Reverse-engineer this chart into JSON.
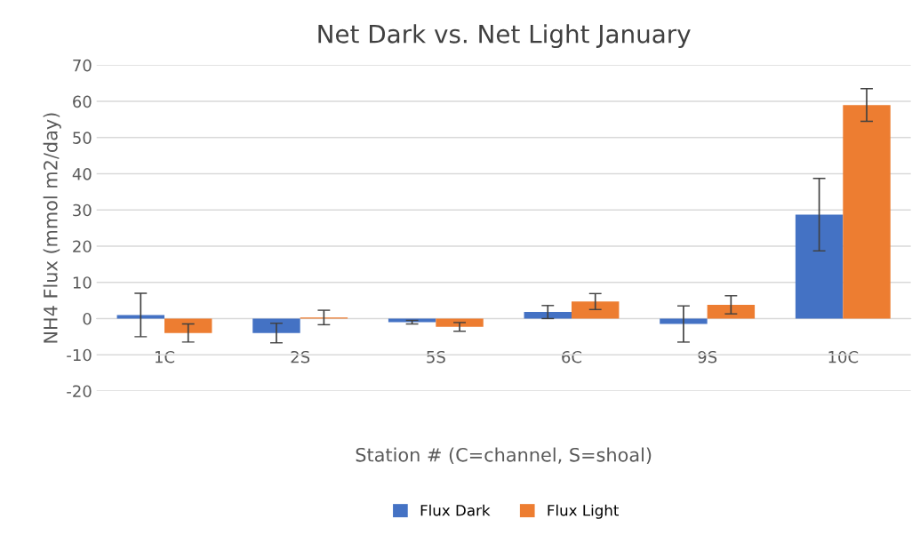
{
  "chart_data": {
    "type": "bar",
    "title": "Net Dark vs. Net Light January",
    "xlabel": "Station # (C=channel, S=shoal)",
    "ylabel": "NH4 Flux (mmol m2/day)",
    "categories": [
      "1C",
      "2S",
      "5S",
      "6C",
      "9S",
      "10C"
    ],
    "series": [
      {
        "name": "Flux Dark",
        "color": "#4472c4",
        "values": [
          1,
          -4,
          -1,
          1.8,
          -1.5,
          28.7
        ],
        "errors": [
          6,
          2.7,
          0.5,
          1.8,
          5,
          10
        ]
      },
      {
        "name": "Flux Light",
        "color": "#ed7d31",
        "values": [
          -4,
          0.3,
          -2.3,
          4.7,
          3.8,
          59
        ],
        "errors": [
          2.5,
          2,
          1.2,
          2.2,
          2.5,
          4.5
        ]
      }
    ],
    "ylim": [
      -20,
      70
    ],
    "yticks": [
      -20,
      -10,
      0,
      10,
      20,
      30,
      40,
      50,
      60,
      70
    ],
    "grid": "y",
    "legend": "bottom"
  }
}
